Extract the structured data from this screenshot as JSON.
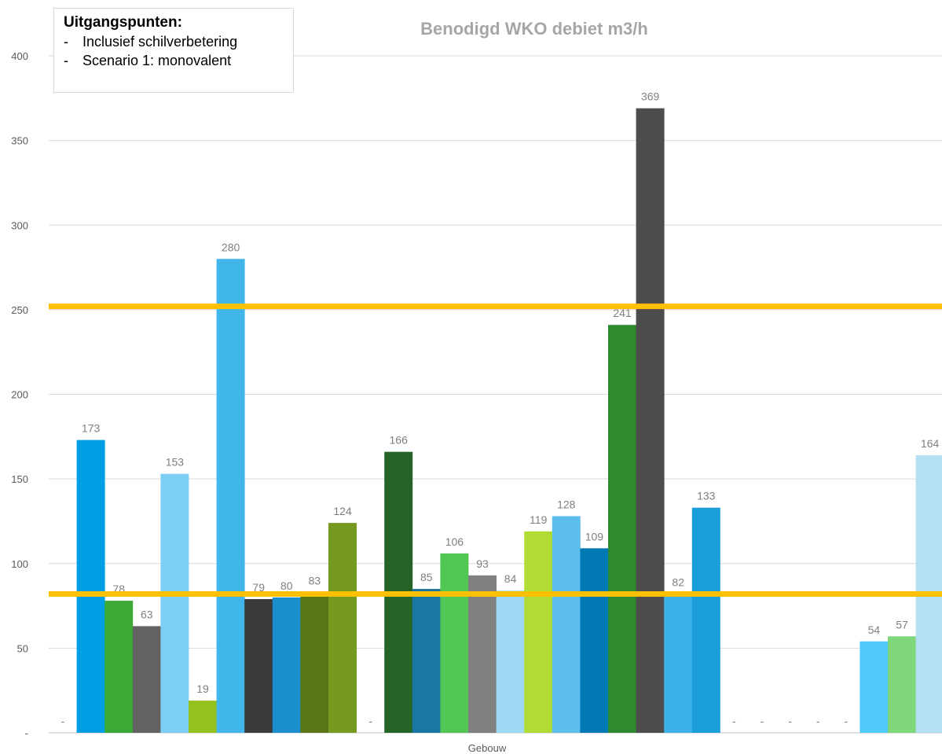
{
  "legend": {
    "title": "Uitgangspunten:",
    "items": [
      {
        "dash": "-",
        "text": "Inclusief schilverbetering"
      },
      {
        "dash": "-",
        "text": "Scenario 1: monovalent"
      }
    ]
  },
  "chart_data": {
    "type": "bar",
    "title": "Benodigd WKO debiet m3/h",
    "xlabel": "Gebouw",
    "ylabel": "",
    "ylim": [
      0,
      400
    ],
    "yticks": [
      0,
      50,
      100,
      150,
      200,
      250,
      300,
      350,
      400
    ],
    "ytick_labels": [
      "-",
      "50",
      "100",
      "150",
      "200",
      "250",
      "300",
      "350",
      "400"
    ],
    "grid": true,
    "bars": [
      {
        "value": 0,
        "label": "-",
        "color": "#009fe3"
      },
      {
        "value": 173,
        "label": "173",
        "color": "#009fe3"
      },
      {
        "value": 78,
        "label": "78",
        "color": "#3aaa35"
      },
      {
        "value": 63,
        "label": "63",
        "color": "#626262"
      },
      {
        "value": 153,
        "label": "153",
        "color": "#7ccef2"
      },
      {
        "value": 19,
        "label": "19",
        "color": "#95c11f"
      },
      {
        "value": 280,
        "label": "280",
        "color": "#40b6ea"
      },
      {
        "value": 79,
        "label": "79",
        "color": "#3a3a3a"
      },
      {
        "value": 80,
        "label": "80",
        "color": "#1a8fcc"
      },
      {
        "value": 83,
        "label": "83",
        "color": "#5a7516"
      },
      {
        "value": 124,
        "label": "124",
        "color": "#76991f"
      },
      {
        "value": 0,
        "label": "-",
        "color": "#76991f"
      },
      {
        "value": 166,
        "label": "166",
        "color": "#246527"
      },
      {
        "value": 85,
        "label": "85",
        "color": "#1a76a3"
      },
      {
        "value": 106,
        "label": "106",
        "color": "#52c653"
      },
      {
        "value": 93,
        "label": "93",
        "color": "#808080"
      },
      {
        "value": 84,
        "label": "84",
        "color": "#9ed8f2"
      },
      {
        "value": 119,
        "label": "119",
        "color": "#b1dc36"
      },
      {
        "value": 128,
        "label": "128",
        "color": "#5cbeed"
      },
      {
        "value": 109,
        "label": "109",
        "color": "#0079b4"
      },
      {
        "value": 241,
        "label": "241",
        "color": "#2e8a2e"
      },
      {
        "value": 369,
        "label": "369",
        "color": "#4d4d4d"
      },
      {
        "value": 82,
        "label": "82",
        "color": "#3db2e8"
      },
      {
        "value": 133,
        "label": "133",
        "color": "#1a9dd9"
      },
      {
        "value": 0,
        "label": "-",
        "color": "#1a9dd9"
      },
      {
        "value": 0,
        "label": "-",
        "color": "#1a9dd9"
      },
      {
        "value": 0,
        "label": "-",
        "color": "#1a9dd9"
      },
      {
        "value": 0,
        "label": "-",
        "color": "#1a9dd9"
      },
      {
        "value": 0,
        "label": "-",
        "color": "#1a9dd9"
      },
      {
        "value": 54,
        "label": "54",
        "color": "#4fc8fa"
      },
      {
        "value": 57,
        "label": "57",
        "color": "#7fd67b"
      },
      {
        "value": 164,
        "label": "164",
        "color": "#b4e0f3"
      }
    ],
    "reference_lines": [
      {
        "value": 252,
        "color": "#ffc000"
      },
      {
        "value": 82,
        "color": "#ffc000"
      }
    ],
    "colors": {
      "gridline": "#d9d9d9",
      "axis": "#bfbfbf",
      "tick_text": "#595959",
      "data_label": "#7f7f7f"
    }
  }
}
